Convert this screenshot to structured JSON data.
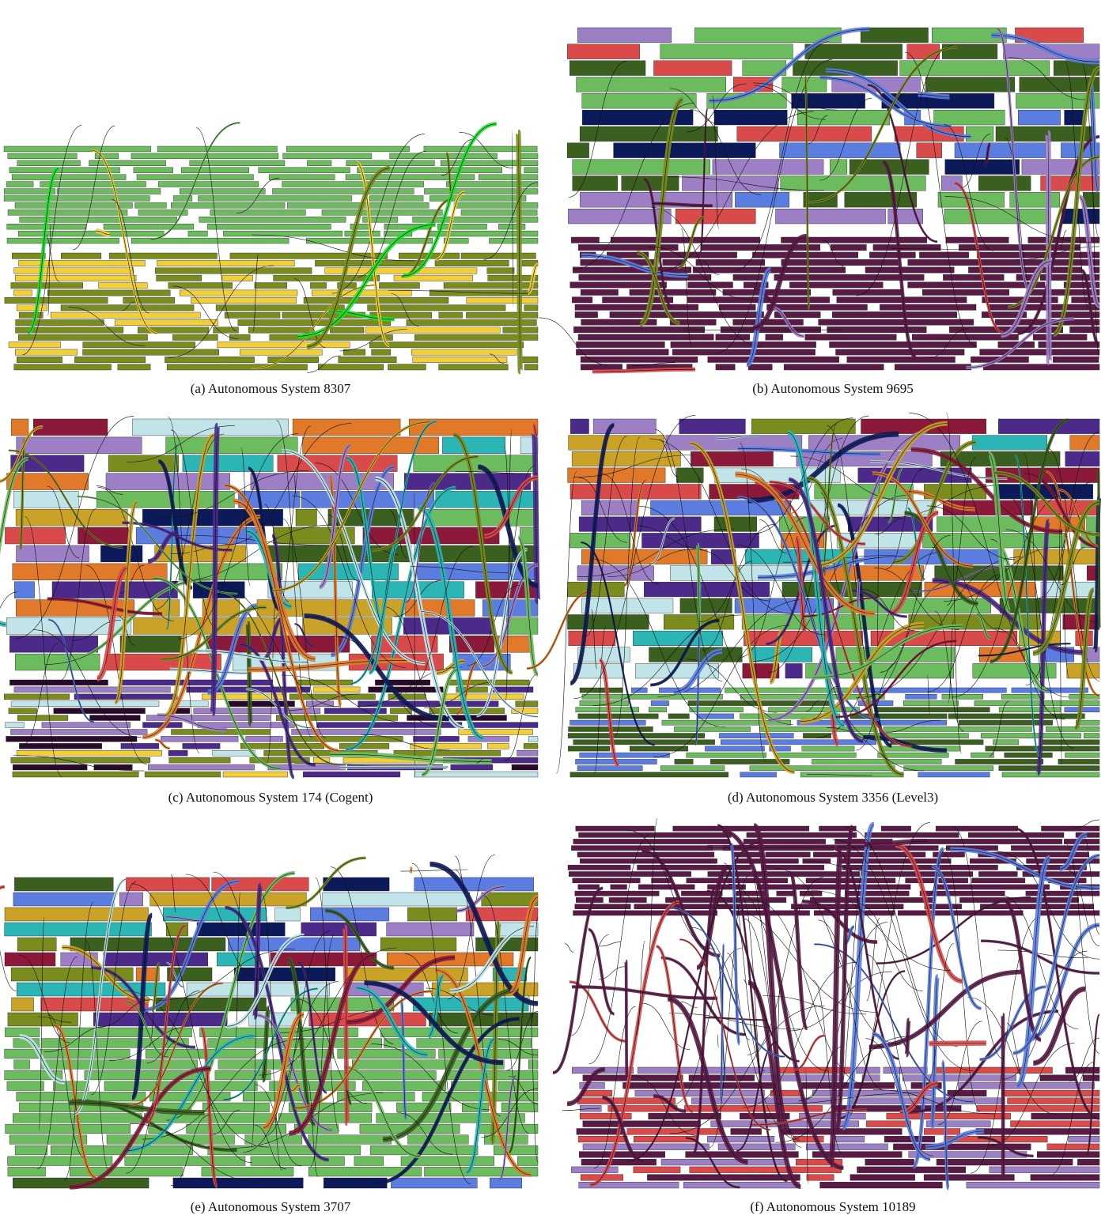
{
  "panels": [
    {
      "caption": "(a) Autonomous System 8307"
    },
    {
      "caption": "(b) Autonomous System 9695"
    },
    {
      "caption": "(c) Autonomous System 174 (Cogent)"
    },
    {
      "caption": "(d) Autonomous System 3356 (Level3)"
    },
    {
      "caption": "(e) Autonomous System 3707"
    },
    {
      "caption": "(f) Autonomous System 10189"
    }
  ]
}
